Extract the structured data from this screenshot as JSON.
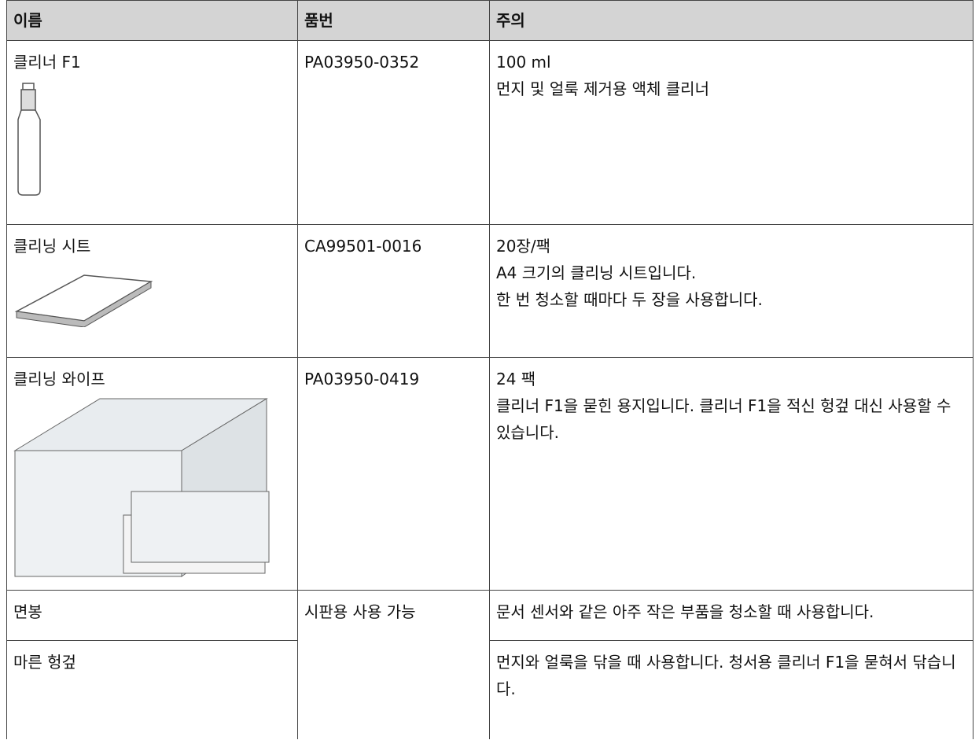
{
  "table": {
    "header": [
      "이름",
      "품번",
      "주의"
    ],
    "rows": [
      {
        "name": "클리너 F1",
        "part_number": "PA03950-0352",
        "notes": [
          "100 ml",
          "먼지 및 얼룩 제거용 액체 클리너"
        ]
      },
      {
        "name": "클리닝 시트",
        "part_number": "CA99501-0016",
        "notes": [
          "20장/팩",
          "A4 크기의 클리닝 시트입니다.",
          "한 번 청소할 때마다 두 장을 사용합니다."
        ]
      },
      {
        "name": "클리닝 와이프",
        "part_number": "PA03950-0419",
        "notes": [
          "24 팩",
          "클리너 F1을 묻힌 용지입니다. 클리너 F1을 적신 헝겊 대신 사용할 수 있습니다."
        ]
      },
      {
        "name": "면봉",
        "part_number": "시판용 사용 가능",
        "notes": [
          "문서 센서와 같은 아주 작은 부품을 청소할 때 사용합니다."
        ]
      },
      {
        "name": "마른 헝겊",
        "notes": [
          "먼지와 얼룩을 닦을 때 사용합니다. 청서용 클리너 F1을 묻혀서 닦습니다."
        ]
      }
    ]
  }
}
